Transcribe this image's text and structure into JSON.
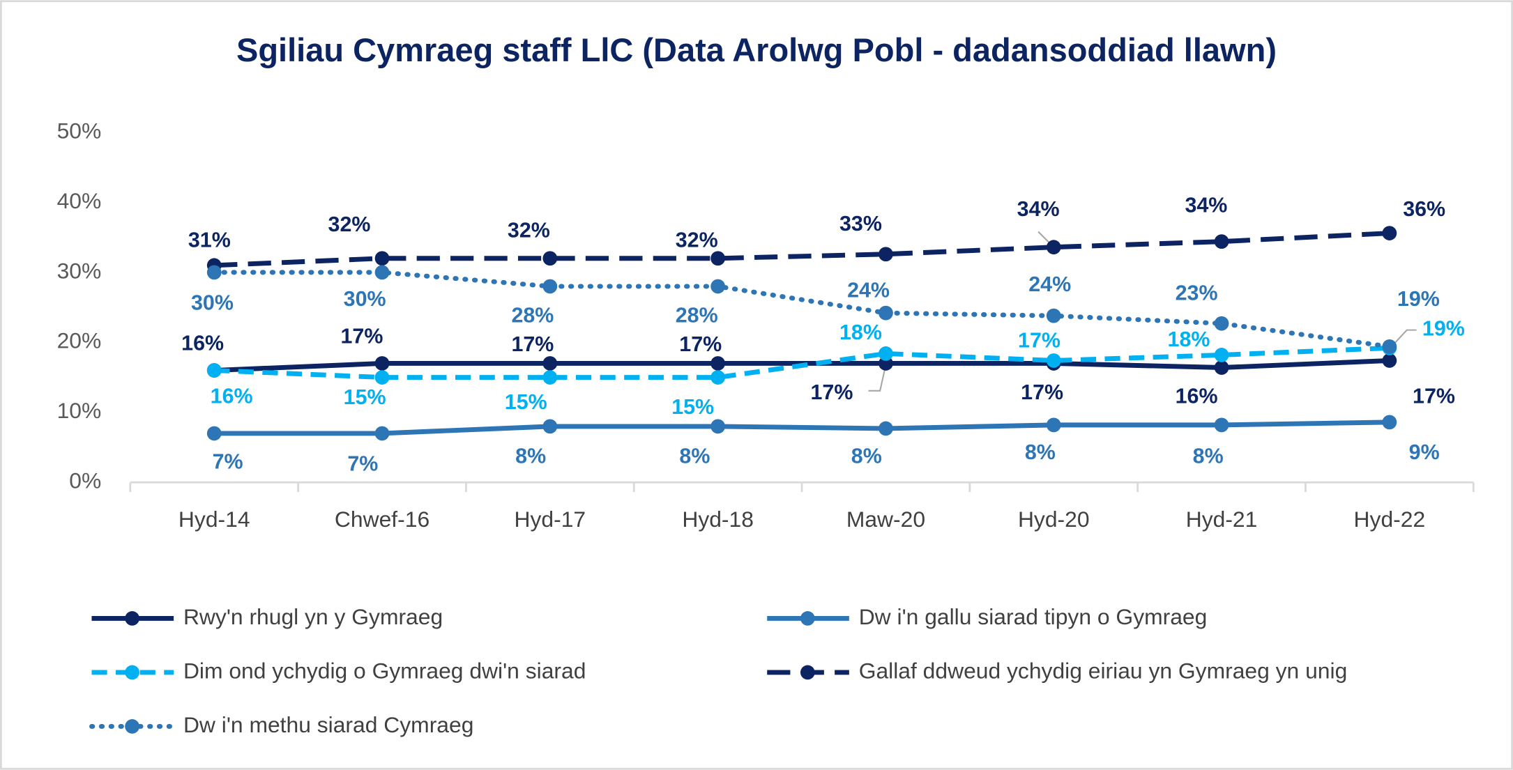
{
  "chart_data": {
    "type": "line",
    "title": "Sgiliau Cymraeg staff LlC (Data Arolwg Pobl - dadansoddiad llawn)",
    "categories": [
      "Hyd-14",
      "Chwef-16",
      "Hyd-17",
      "Hyd-18",
      "Maw-20",
      "Hyd-20",
      "Hyd-21",
      "Hyd-22"
    ],
    "ylim": [
      0,
      50
    ],
    "yticks": [
      {
        "value": 0,
        "label": "0%"
      },
      {
        "value": 10,
        "label": "10%"
      },
      {
        "value": 20,
        "label": "20%"
      },
      {
        "value": 30,
        "label": "30%"
      },
      {
        "value": 40,
        "label": "40%"
      },
      {
        "value": 50,
        "label": "50%"
      }
    ],
    "grid": false,
    "legend": "bottom",
    "series": [
      {
        "name": "Rwy'n rhugl yn y Gymraeg",
        "color": "#0c2461",
        "line_style": "solid",
        "values": [
          16,
          17,
          17,
          17,
          17,
          17,
          16.4,
          17.4
        ],
        "value_labels": [
          "16%",
          "17%",
          "17%",
          "17%",
          "17%",
          "17%",
          "16%",
          "17%"
        ]
      },
      {
        "name": "Dw i'n gallu siarad tipyn o Gymraeg",
        "color": "#2e75b6",
        "line_style": "solid",
        "values": [
          7,
          7,
          8,
          8,
          7.7,
          8.2,
          8.2,
          8.6
        ],
        "value_labels": [
          "7%",
          "7%",
          "8%",
          "8%",
          "8%",
          "8%",
          "8%",
          "9%"
        ]
      },
      {
        "name": "Dim ond ychydig o Gymraeg dwi'n siarad",
        "color": "#00b0f0",
        "line_style": "dashed",
        "values": [
          16,
          15,
          15,
          15,
          18.4,
          17.4,
          18.2,
          19.2
        ],
        "value_labels": [
          "16%",
          "15%",
          "15%",
          "15%",
          "18%",
          "17%",
          "18%",
          "19%"
        ]
      },
      {
        "name": "Gallaf ddweud ychydig eiriau yn Gymraeg yn unig",
        "color": "#0c2461",
        "line_style": "longdash",
        "values": [
          31,
          32,
          32,
          32,
          32.6,
          33.6,
          34.4,
          35.6
        ],
        "value_labels": [
          "31%",
          "32%",
          "32%",
          "32%",
          "33%",
          "34%",
          "34%",
          "36%"
        ]
      },
      {
        "name": "Dw i'n methu siarad Cymraeg",
        "color": "#2e75b6",
        "line_style": "dotted",
        "values": [
          30,
          30,
          28,
          28,
          24.2,
          23.8,
          22.7,
          19.4
        ],
        "value_labels": [
          "30%",
          "30%",
          "28%",
          "28%",
          "24%",
          "24%",
          "23%",
          "19%"
        ]
      }
    ]
  }
}
